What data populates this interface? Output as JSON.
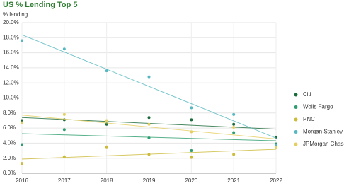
{
  "chart_data": {
    "type": "scatter",
    "title": "US % Lending Top 5",
    "y_label": "% lending",
    "x": [
      2016,
      2017,
      2018,
      2019,
      2020,
      2021,
      2022
    ],
    "xlim": [
      2016,
      2022
    ],
    "xticks": [
      2016,
      2017,
      2018,
      2019,
      2020,
      2021,
      2022
    ],
    "ylim": [
      0,
      20
    ],
    "yticks": [
      {
        "value": 0,
        "label": "0.0%"
      },
      {
        "value": 2,
        "label": "2.0%"
      },
      {
        "value": 4,
        "label": "4.0%"
      },
      {
        "value": 6,
        "label": "6.0%"
      },
      {
        "value": 8,
        "label": "8.0%"
      },
      {
        "value": 10,
        "label": "10.0%"
      },
      {
        "value": 12,
        "label": "12.0%"
      },
      {
        "value": 14,
        "label": "14.0%"
      },
      {
        "value": 16,
        "label": "16.0%"
      },
      {
        "value": 18,
        "label": "18.0%"
      },
      {
        "value": 20,
        "label": "20.0%"
      }
    ],
    "grid": true,
    "trendline": true,
    "legend": "right",
    "series": [
      {
        "name": "Citi",
        "color": "#1b6b3a",
        "values": [
          7.0,
          7.1,
          6.5,
          7.4,
          7.1,
          6.5,
          4.8
        ]
      },
      {
        "name": "Wells Fargo",
        "color": "#2e9e6e",
        "values": [
          3.8,
          5.8,
          6.9,
          4.7,
          3.0,
          5.4,
          3.9
        ]
      },
      {
        "name": "PNC",
        "color": "#cdbb3c",
        "values": [
          1.3,
          2.2,
          3.5,
          2.5,
          2.1,
          2.5,
          3.6
        ]
      },
      {
        "name": "Morgan Stanley",
        "color": "#56b8c0",
        "values": [
          17.6,
          16.5,
          13.6,
          12.8,
          8.7,
          7.8,
          3.7
        ]
      },
      {
        "name": "JPMorgan Chase",
        "color": "#e6cf62",
        "values": [
          6.7,
          7.8,
          7.0,
          6.5,
          5.5,
          6.1,
          3.4
        ]
      }
    ]
  }
}
